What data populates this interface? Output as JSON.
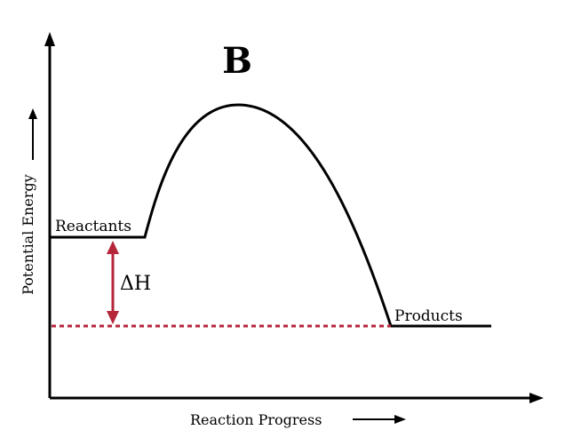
{
  "diagram": {
    "title": "B",
    "x_axis_label": "Reaction Progress",
    "y_axis_label": "Potential Energy",
    "reactants_label": "Reactants",
    "products_label": "Products",
    "delta_label": "ΔH"
  },
  "colors": {
    "curve": "#000000",
    "axes": "#000000",
    "delta_arrow": "#b5263a",
    "dotted_line": "#b5263a"
  }
}
